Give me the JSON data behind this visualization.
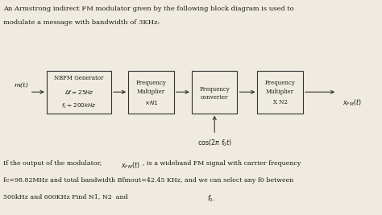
{
  "title_line1": "An Armstrong indirect FM modulator given by the following block diagram is used to",
  "title_line2": "modulate a message with bandwidth of 3KHz:",
  "bg_color": "#f0ebe0",
  "box_color": "#f0ebe0",
  "box_edge": "#333333",
  "text_color": "#1a1a1a",
  "arrow_color": "#333333",
  "block1_top": "NBFM Generator",
  "block2_top": "Frequency",
  "block2_mid": "Multiplier",
  "block3_top": "Frequency",
  "block3_mid": "converter",
  "block4_top": "Frequency",
  "block4_mid": "Multiplier",
  "block4_bot": "X N2",
  "input_label": "m(t)",
  "footer_line2": "fc=98.82MHz and total bandwidth Bfmout=42.45 KHz, and we can select any f0 between",
  "footer_line3": "500kHz and 600KHz Find N1, N2  and  "
}
